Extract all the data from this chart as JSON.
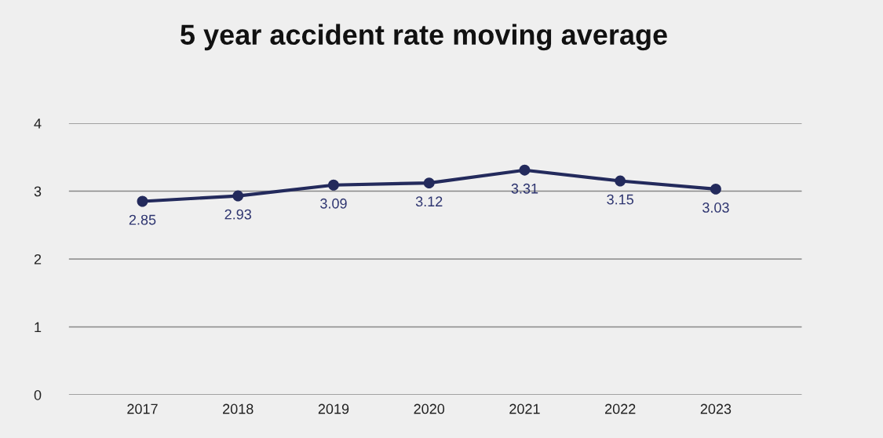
{
  "chart_data": {
    "type": "line",
    "title": "5 year accident rate moving average",
    "categories": [
      "2017",
      "2018",
      "2019",
      "2020",
      "2021",
      "2022",
      "2023"
    ],
    "series": [
      {
        "color": "#232a5c",
        "values": [
          2.85,
          2.93,
          3.09,
          3.12,
          3.31,
          3.15,
          3.03
        ]
      }
    ],
    "ylim": [
      0,
      4
    ],
    "yticks": [
      0,
      1,
      2,
      3,
      4
    ],
    "grid": "y",
    "marker": "circle",
    "line_style": "solid",
    "data_labels": true,
    "legend": false
  }
}
